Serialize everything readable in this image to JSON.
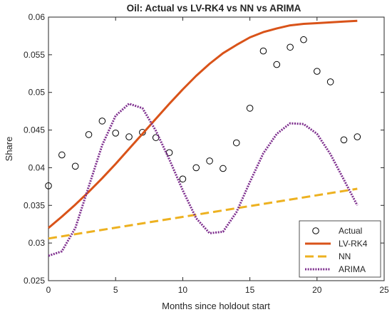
{
  "chart_data": {
    "type": "line",
    "title": "Oil: Actual vs LV-RK4 vs NN vs  ARIMA",
    "xlabel": "Months since holdout start",
    "ylabel": "Share",
    "xlim": [
      0,
      25
    ],
    "ylim": [
      0.025,
      0.06
    ],
    "xticks": [
      0,
      5,
      10,
      15,
      20,
      25
    ],
    "yticks": [
      0.025,
      0.03,
      0.035,
      0.04,
      0.045,
      0.05,
      0.055,
      0.06
    ],
    "xtick_labels": [
      "0",
      "5",
      "10",
      "15",
      "20",
      "25"
    ],
    "ytick_labels": [
      "0.025",
      "0.03",
      "0.035",
      "0.04",
      "0.045",
      "0.05",
      "0.055",
      "0.06"
    ],
    "grid": false,
    "legend_position": "bottom-right",
    "series": [
      {
        "name": "Actual",
        "style": "markers",
        "color": "#000000",
        "x": [
          0,
          1,
          2,
          3,
          4,
          5,
          6,
          7,
          8,
          9,
          10,
          11,
          12,
          13,
          14,
          15,
          16,
          17,
          18,
          19,
          20,
          21,
          22,
          23
        ],
        "values": [
          0.0376,
          0.0417,
          0.0402,
          0.0444,
          0.0462,
          0.0446,
          0.0441,
          0.0447,
          0.044,
          0.042,
          0.0385,
          0.04,
          0.0409,
          0.0399,
          0.0433,
          0.0479,
          0.0555,
          0.0537,
          0.056,
          0.057,
          0.0528,
          0.0514,
          0.0437,
          0.0441
        ]
      },
      {
        "name": "LV-RK4",
        "style": "solid",
        "color": "#D95319",
        "x": [
          0,
          1,
          2,
          3,
          4,
          5,
          6,
          7,
          8,
          9,
          10,
          11,
          12,
          13,
          14,
          15,
          16,
          17,
          18,
          19,
          20,
          21,
          22,
          23
        ],
        "values": [
          0.032,
          0.0335,
          0.0351,
          0.0368,
          0.0386,
          0.0405,
          0.0425,
          0.0445,
          0.0465,
          0.0485,
          0.0504,
          0.0522,
          0.0538,
          0.0552,
          0.0563,
          0.0573,
          0.058,
          0.0585,
          0.0589,
          0.0591,
          0.0592,
          0.0593,
          0.0594,
          0.0595
        ]
      },
      {
        "name": "NN",
        "style": "dashed",
        "color": "#EDB120",
        "x": [
          0,
          23
        ],
        "values": [
          0.0306,
          0.0372
        ]
      },
      {
        "name": "ARIMA",
        "style": "dotted",
        "color": "#7E2F8E",
        "x": [
          0,
          1,
          2,
          3,
          4,
          5,
          6,
          7,
          8,
          9,
          10,
          11,
          12,
          13,
          14,
          15,
          16,
          17,
          18,
          19,
          20,
          21,
          22,
          23
        ],
        "values": [
          0.0283,
          0.0289,
          0.032,
          0.0375,
          0.043,
          0.0469,
          0.0485,
          0.0479,
          0.0449,
          0.0411,
          0.037,
          0.0333,
          0.0313,
          0.0315,
          0.0341,
          0.0381,
          0.0419,
          0.0445,
          0.0459,
          0.0458,
          0.0445,
          0.0418,
          0.0384,
          0.035
        ]
      }
    ]
  }
}
